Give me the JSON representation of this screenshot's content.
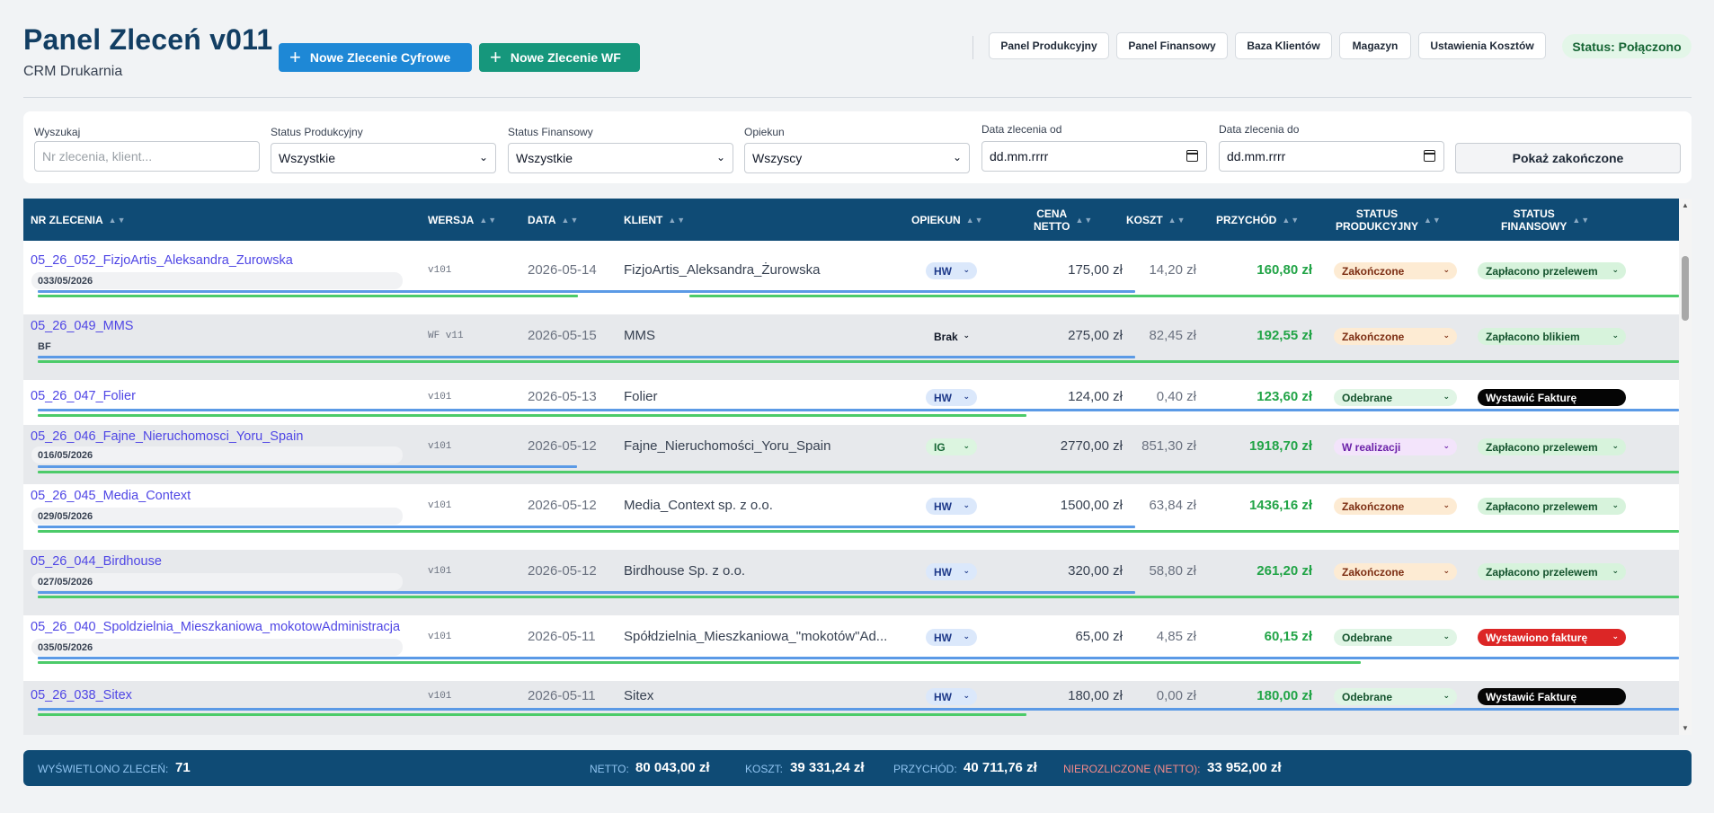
{
  "header": {
    "title": "Panel Zleceń v011",
    "subtitle": "CRM Drukarnia",
    "btn_cyfrowe": "Nowe Zlecenie Cyfrowe",
    "btn_wf": "Nowe Zlecenie WF",
    "nav": [
      "Panel Produkcyjny",
      "Panel Finansowy",
      "Baza Klientów",
      "Magazyn",
      "Ustawienia Kosztów"
    ],
    "status": "Status: Połączono"
  },
  "filters": {
    "search_label": "Wyszukaj",
    "search_placeholder": "Nr zlecenia, klient...",
    "prod_label": "Status Produkcyjny",
    "prod_value": "Wszystkie",
    "fin_label": "Status Finansowy",
    "fin_value": "Wszystkie",
    "op_label": "Opiekun",
    "op_value": "Wszyscy",
    "date_from_label": "Data zlecenia od",
    "date_from_value": "dd.mm.rrrr",
    "date_to_label": "Data zlecenia do",
    "date_to_value": "dd.mm.rrrr",
    "show_done": "Pokaż zakończone"
  },
  "columns": {
    "nr": "NR ZLECENIA",
    "wersja": "WERSJA",
    "data": "DATA",
    "klient": "KLIENT",
    "opiekun": "OPIEKUN",
    "cena_netto_1": "CENA",
    "cena_netto_2": "NETTO",
    "koszt": "KOSZT",
    "przychod": "PRZYCHÓD",
    "sp_1": "STATUS",
    "sp_2": "PRODUKCYJNY",
    "sf_1": "STATUS",
    "sf_2": "FINANSOWY",
    "sort_arrows": "▲▼"
  },
  "rows": [
    {
      "nr": "05_26_052_FizjoArtis_Aleksandra_Zurowska",
      "note": "033/05/2026",
      "version": "v101",
      "date": "2026-05-14",
      "client": "FizjoArtis_Aleksandra_Żurowska",
      "op": "HW",
      "netto": "175,00 zł",
      "koszt": "14,20 zł",
      "przychod": "160,80 zł",
      "sp": "Zakończone",
      "sf": "Zapłacono przelewem"
    },
    {
      "nr": "05_26_049_MMS",
      "note": "BF",
      "version": "WF v11",
      "date": "2026-05-15",
      "client": "MMS",
      "op": "Brak",
      "netto": "275,00 zł",
      "koszt": "82,45 zł",
      "przychod": "192,55 zł",
      "sp": "Zakończone",
      "sf": "Zapłacono blikiem"
    },
    {
      "nr": "05_26_047_Folier",
      "note": "",
      "version": "v101",
      "date": "2026-05-13",
      "client": "Folier",
      "op": "HW",
      "netto": "124,00 zł",
      "koszt": "0,40 zł",
      "przychod": "123,60 zł",
      "sp": "Odebrane",
      "sf": "Wystawić Fakturę"
    },
    {
      "nr": "05_26_046_Fajne_Nieruchomosci_Yoru_Spain",
      "note": "016/05/2026",
      "version": "v101",
      "date": "2026-05-12",
      "client": "Fajne_Nieruchomości_Yoru_Spain",
      "op": "IG",
      "netto": "2770,00 zł",
      "koszt": "851,30 zł",
      "przychod": "1918,70 zł",
      "sp": "W realizacji",
      "sf": "Zapłacono przelewem"
    },
    {
      "nr": "05_26_045_Media_Context",
      "note": "029/05/2026",
      "version": "v101",
      "date": "2026-05-12",
      "client": "Media_Context sp. z o.o.",
      "op": "HW",
      "netto": "1500,00 zł",
      "koszt": "63,84 zł",
      "przychod": "1436,16 zł",
      "sp": "Zakończone",
      "sf": "Zapłacono przelewem"
    },
    {
      "nr": "05_26_044_Birdhouse",
      "note": "027/05/2026",
      "version": "v101",
      "date": "2026-05-12",
      "client": "Birdhouse Sp. z o.o.",
      "op": "HW",
      "netto": "320,00 zł",
      "koszt": "58,80 zł",
      "przychod": "261,20 zł",
      "sp": "Zakończone",
      "sf": "Zapłacono przelewem"
    },
    {
      "nr": "05_26_040_Spoldzielnia_Mieszkaniowa_mokotowAdministracja",
      "note": "035/05/2026",
      "version": "v101",
      "date": "2026-05-11",
      "client": "Spółdzielnia_Mieszkaniowa_\"mokotów\"Ad...",
      "op": "HW",
      "netto": "65,00 zł",
      "koszt": "4,85 zł",
      "przychod": "60,15 zł",
      "sp": "Odebrane",
      "sf": "Wystawiono fakturę"
    },
    {
      "nr": "05_26_038_Sitex",
      "note": "",
      "version": "v101",
      "date": "2026-05-11",
      "client": "Sitex",
      "op": "HW",
      "netto": "180,00 zł",
      "koszt": "0,00 zł",
      "przychod": "180,00 zł",
      "sp": "Odebrane",
      "sf": "Wystawić Fakturę"
    }
  ],
  "footer": {
    "count_label": "WYŚWIETLONO ZLECEŃ:",
    "count": "71",
    "netto_label": "NETTO:",
    "netto": "80 043,00 zł",
    "koszt_label": "KOSZT:",
    "koszt": "39 331,24 zł",
    "przychod_label": "PRZYCHÓD:",
    "przychod": "40 711,76 zł",
    "nierozliczone_label": "NIEROZLICZONE (NETTO):",
    "nierozliczone": "33 952,00 zł"
  },
  "icons": {
    "plus": "plus-icon",
    "chevron": "chevron-down-icon",
    "calendar": "calendar-icon"
  },
  "colors": {
    "brand": "#0f4b75",
    "cyfrowe": "#1e88d6",
    "wf": "#16977c",
    "profit": "#22a447"
  }
}
